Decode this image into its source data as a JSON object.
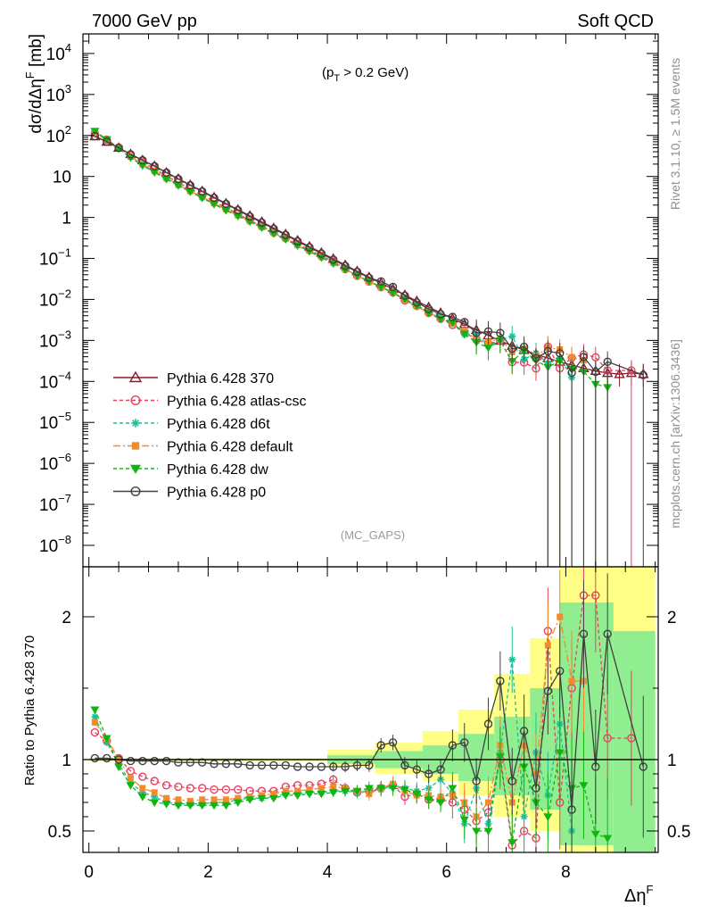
{
  "header": {
    "left": "7000 GeV pp",
    "right": "Soft QCD",
    "cut_prefix": "(p",
    "cut_sub": "T",
    "cut_suffix": " > 0.2 GeV)",
    "analysis": "(MC_GAPS)",
    "side_top": "Rivet 3.1.10, ≥ 1.5M events",
    "side_bottom": "mcplots.cern.ch [arXiv:1306.3436]"
  },
  "chart_data": {
    "type": "line",
    "x_label_main": "Δη",
    "x_label_sup": "F",
    "x_ticks": [
      "0",
      "2",
      "4",
      "6",
      "8"
    ],
    "main": {
      "ylabel_prefix": "dσ/dΔη",
      "ylabel_sup": "F",
      "ylabel_suffix": " [mb]",
      "yscale": "log",
      "ylim": [
        3e-09,
        30000
      ],
      "y_ticks": [
        {
          "v": 10000.0,
          "base": "10",
          "exp": "4"
        },
        {
          "v": 1000.0,
          "base": "10",
          "exp": "3"
        },
        {
          "v": 100.0,
          "base": "10",
          "exp": "2"
        },
        {
          "v": 10,
          "base": "10",
          "exp": ""
        },
        {
          "v": 1,
          "base": "1",
          "exp": ""
        },
        {
          "v": 0.1,
          "base": "10",
          "exp": "−1"
        },
        {
          "v": 0.01,
          "base": "10",
          "exp": "−2"
        },
        {
          "v": 0.001,
          "base": "10",
          "exp": "−3"
        },
        {
          "v": 0.0001,
          "base": "10",
          "exp": "−4"
        },
        {
          "v": 1e-05,
          "base": "10",
          "exp": "−5"
        },
        {
          "v": 1e-06,
          "base": "10",
          "exp": "−6"
        },
        {
          "v": 1e-07,
          "base": "10",
          "exp": "−7"
        },
        {
          "v": 1e-08,
          "base": "10",
          "exp": "−8"
        }
      ]
    },
    "ratio": {
      "ylabel": "Ratio to Pythia 6.428 370",
      "ylim": [
        0.35,
        2.35
      ],
      "y_ticks": [
        "0.5",
        "1",
        "2"
      ],
      "y_tick_values": [
        0.5,
        1,
        2
      ]
    },
    "xlim": [
      -0.1,
      9.55
    ],
    "bands": [
      {
        "x0": 0.0,
        "x1": 4.0,
        "yel": [
          0.99,
          1.01
        ],
        "grn": [
          0.995,
          1.005
        ]
      },
      {
        "x0": 4.0,
        "x1": 4.8,
        "yel": [
          0.95,
          1.07
        ],
        "grn": [
          0.97,
          1.03
        ]
      },
      {
        "x0": 4.8,
        "x1": 5.6,
        "yel": [
          0.9,
          1.12
        ],
        "grn": [
          0.94,
          1.06
        ]
      },
      {
        "x0": 5.6,
        "x1": 6.2,
        "yel": [
          0.85,
          1.2
        ],
        "grn": [
          0.9,
          1.1
        ]
      },
      {
        "x0": 6.2,
        "x1": 6.8,
        "yel": [
          0.75,
          1.35
        ],
        "grn": [
          0.85,
          1.18
        ]
      },
      {
        "x0": 6.8,
        "x1": 7.4,
        "yel": [
          0.6,
          1.6
        ],
        "grn": [
          0.75,
          1.3
        ]
      },
      {
        "x0": 7.4,
        "x1": 7.9,
        "yel": [
          0.5,
          1.85
        ],
        "grn": [
          0.65,
          1.5
        ]
      },
      {
        "x0": 7.9,
        "x1": 8.8,
        "yel": [
          0.35,
          2.35
        ],
        "grn": [
          0.4,
          2.1
        ]
      },
      {
        "x0": 8.8,
        "x1": 9.5,
        "yel": [
          0.35,
          2.35
        ],
        "grn": [
          0.35,
          1.9
        ]
      }
    ],
    "series": [
      {
        "name": "Pythia 6.428 370",
        "color": "#8b1a2b",
        "dash": "",
        "marker": "triangle-open",
        "x": [
          0.1,
          0.3,
          0.5,
          0.7,
          0.9,
          1.1,
          1.3,
          1.5,
          1.7,
          1.9,
          2.1,
          2.3,
          2.5,
          2.7,
          2.9,
          3.1,
          3.3,
          3.5,
          3.7,
          3.9,
          4.1,
          4.3,
          4.5,
          4.7,
          4.9,
          5.1,
          5.3,
          5.5,
          5.7,
          5.9,
          6.1,
          6.3,
          6.5,
          6.7,
          6.9,
          7.1,
          7.3,
          7.5,
          7.7,
          7.9,
          8.1,
          8.3,
          8.5,
          8.7,
          8.9,
          9.1,
          9.3
        ],
        "y": [
          95,
          70,
          50,
          35,
          25,
          18,
          12.5,
          8.8,
          6.2,
          4.4,
          3.1,
          2.2,
          1.55,
          1.1,
          0.78,
          0.55,
          0.39,
          0.275,
          0.195,
          0.138,
          0.098,
          0.069,
          0.049,
          0.035,
          0.025,
          0.018,
          0.0128,
          0.0091,
          0.0065,
          0.0047,
          0.0034,
          0.0025,
          0.0018,
          0.00132,
          0.00098,
          0.00074,
          0.00058,
          0.00046,
          0.00037,
          0.0003,
          0.00025,
          0.00021,
          0.00018,
          0.00016,
          0.00015,
          0.00016,
          0.00015
        ],
        "ratio": [
          1,
          1,
          1,
          1,
          1,
          1,
          1,
          1,
          1,
          1,
          1,
          1,
          1,
          1,
          1,
          1,
          1,
          1,
          1,
          1,
          1,
          1,
          1,
          1,
          1,
          1,
          1,
          1,
          1,
          1,
          1,
          1,
          1,
          1,
          1,
          1,
          1,
          1,
          1,
          1,
          1,
          1,
          1,
          1,
          1,
          1,
          1
        ]
      },
      {
        "name": "Pythia 6.428 atlas-csc",
        "color": "#e8405f",
        "dash": "4 3",
        "marker": "circle-open",
        "x": [
          0.1,
          0.3,
          0.5,
          0.7,
          0.9,
          1.1,
          1.3,
          1.5,
          1.7,
          1.9,
          2.1,
          2.3,
          2.5,
          2.7,
          2.9,
          3.1,
          3.3,
          3.5,
          3.7,
          3.9,
          4.1,
          4.3,
          4.5,
          4.7,
          4.9,
          5.1,
          5.3,
          5.5,
          5.7,
          5.9,
          6.1,
          6.3,
          6.5,
          6.7,
          6.9,
          7.1,
          7.3,
          7.5,
          7.7,
          7.9,
          8.1,
          8.3,
          8.5,
          8.7,
          9.1
        ],
        "ratio": [
          1.19,
          1.13,
          1.01,
          0.92,
          0.88,
          0.85,
          0.82,
          0.81,
          0.8,
          0.8,
          0.79,
          0.79,
          0.79,
          0.78,
          0.78,
          0.78,
          0.81,
          0.82,
          0.82,
          0.83,
          0.86,
          0.8,
          0.77,
          0.78,
          0.8,
          0.82,
          0.74,
          0.76,
          0.72,
          0.72,
          0.7,
          0.65,
          0.57,
          0.63,
          1.0,
          0.4,
          0.5,
          0.45,
          1.9,
          0.7,
          1.5,
          2.15,
          2.15,
          1.15,
          1.15
        ]
      },
      {
        "name": "Pythia 6.428 d6t",
        "color": "#1dbf9a",
        "dash": "4 3",
        "marker": "star",
        "x": [
          0.1,
          0.3,
          0.5,
          0.7,
          0.9,
          1.1,
          1.3,
          1.5,
          1.7,
          1.9,
          2.1,
          2.3,
          2.5,
          2.7,
          2.9,
          3.1,
          3.3,
          3.5,
          3.7,
          3.9,
          4.1,
          4.3,
          4.5,
          4.7,
          4.9,
          5.1,
          5.3,
          5.5,
          5.7,
          5.9,
          6.1,
          6.3,
          6.5,
          6.7,
          6.9,
          7.1,
          7.3,
          7.5,
          7.7,
          7.9,
          8.1
        ],
        "ratio": [
          1.3,
          1.12,
          0.97,
          0.84,
          0.77,
          0.74,
          0.7,
          0.69,
          0.69,
          0.69,
          0.7,
          0.7,
          0.72,
          0.73,
          0.73,
          0.74,
          0.76,
          0.76,
          0.77,
          0.77,
          0.78,
          0.78,
          0.77,
          0.78,
          0.79,
          0.82,
          0.8,
          0.78,
          0.8,
          0.86,
          0.76,
          0.55,
          0.8,
          0.55,
          1.05,
          1.7,
          0.6,
          1.05,
          0.75,
          1.25,
          0.5
        ]
      },
      {
        "name": "Pythia 6.428 default",
        "color": "#f28a2e",
        "dash": "8 3 2 3",
        "marker": "square",
        "x": [
          0.1,
          0.3,
          0.5,
          0.7,
          0.9,
          1.1,
          1.3,
          1.5,
          1.7,
          1.9,
          2.1,
          2.3,
          2.5,
          2.7,
          2.9,
          3.1,
          3.3,
          3.5,
          3.7,
          3.9,
          4.1,
          4.3,
          4.5,
          4.7,
          4.9,
          5.1,
          5.3,
          5.5,
          5.7,
          5.9,
          6.1,
          6.3,
          6.5,
          6.7,
          6.9,
          7.1,
          7.3,
          7.5,
          7.7,
          7.9,
          8.1,
          8.3
        ],
        "ratio": [
          1.26,
          1.15,
          1.0,
          0.87,
          0.8,
          0.77,
          0.73,
          0.72,
          0.71,
          0.72,
          0.72,
          0.72,
          0.73,
          0.74,
          0.75,
          0.76,
          0.78,
          0.78,
          0.79,
          0.8,
          0.81,
          0.8,
          0.78,
          0.76,
          0.8,
          0.83,
          0.78,
          0.75,
          0.75,
          0.74,
          0.75,
          0.7,
          0.6,
          0.7,
          1.1,
          0.7,
          1.1,
          0.9,
          1.8,
          2.0,
          1.55,
          1.55
        ]
      },
      {
        "name": "Pythia 6.428 dw",
        "color": "#12b412",
        "dash": "4 3",
        "marker": "triangle-down",
        "x": [
          0.1,
          0.3,
          0.5,
          0.7,
          0.9,
          1.1,
          1.3,
          1.5,
          1.7,
          1.9,
          2.1,
          2.3,
          2.5,
          2.7,
          2.9,
          3.1,
          3.3,
          3.5,
          3.7,
          3.9,
          4.1,
          4.3,
          4.5,
          4.7,
          4.9,
          5.1,
          5.3,
          5.5,
          5.7,
          5.9,
          6.1,
          6.3,
          6.5,
          6.7,
          6.9,
          7.1,
          7.3,
          7.5,
          7.7,
          7.9,
          8.1,
          8.3,
          8.5,
          8.7
        ],
        "ratio": [
          1.35,
          1.15,
          0.95,
          0.82,
          0.74,
          0.7,
          0.69,
          0.68,
          0.68,
          0.68,
          0.68,
          0.68,
          0.7,
          0.72,
          0.73,
          0.73,
          0.75,
          0.75,
          0.76,
          0.76,
          0.77,
          0.78,
          0.78,
          0.8,
          0.8,
          0.8,
          0.79,
          0.76,
          0.72,
          0.7,
          0.8,
          0.58,
          0.5,
          0.5,
          1.02,
          0.42,
          0.95,
          0.7,
          0.6,
          1.05,
          0.8,
          0.82,
          0.48,
          0.45
        ]
      },
      {
        "name": "Pythia 6.428 p0",
        "color": "#404040",
        "dash": "",
        "marker": "circle-open",
        "x": [
          0.1,
          0.3,
          0.5,
          0.7,
          0.9,
          1.1,
          1.3,
          1.5,
          1.7,
          1.9,
          2.1,
          2.3,
          2.5,
          2.7,
          2.9,
          3.1,
          3.3,
          3.5,
          3.7,
          3.9,
          4.1,
          4.3,
          4.5,
          4.7,
          4.9,
          5.1,
          5.3,
          5.5,
          5.7,
          5.9,
          6.1,
          6.3,
          6.5,
          6.7,
          6.9,
          7.1,
          7.3,
          7.5,
          7.7,
          7.9,
          8.1,
          8.3,
          8.5,
          8.7,
          9.3
        ],
        "ratio": [
          1.01,
          1.01,
          1.0,
          0.99,
          0.99,
          0.99,
          0.99,
          0.98,
          0.98,
          0.98,
          0.97,
          0.97,
          0.97,
          0.96,
          0.96,
          0.96,
          0.96,
          0.95,
          0.95,
          0.95,
          0.95,
          0.95,
          0.96,
          0.96,
          1.1,
          1.12,
          0.96,
          0.93,
          0.9,
          0.93,
          1.1,
          1.12,
          0.85,
          1.25,
          1.55,
          0.85,
          1.2,
          0.8,
          1.48,
          1.62,
          0.65,
          1.88,
          0.95,
          1.88,
          0.95
        ]
      }
    ]
  }
}
